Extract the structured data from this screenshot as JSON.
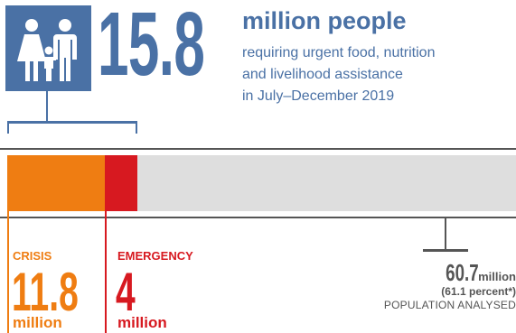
{
  "headline": {
    "number": "15.8",
    "unit": "million people",
    "description": [
      "requiring urgent food, nutrition",
      "and livelihood assistance",
      "in July–December 2019"
    ]
  },
  "icon": {
    "name": "family-icon"
  },
  "phases": {
    "crisis": {
      "label": "CRISIS",
      "value": "11.8",
      "unit": "million",
      "share_of_bar": 0.1919
    },
    "emergency": {
      "label": "EMERGENCY",
      "value": "4",
      "unit": "million",
      "share_of_bar": 0.064
    }
  },
  "population_analysed": {
    "value": "60.7",
    "unit": "million",
    "percent": "(61.1 percent*)",
    "label": "POPULATION ANALYSED"
  },
  "colors": {
    "accent": "#4a71a5",
    "crisis": "#ef7d12",
    "emergency": "#d71920",
    "remainder": "#dedede"
  }
}
